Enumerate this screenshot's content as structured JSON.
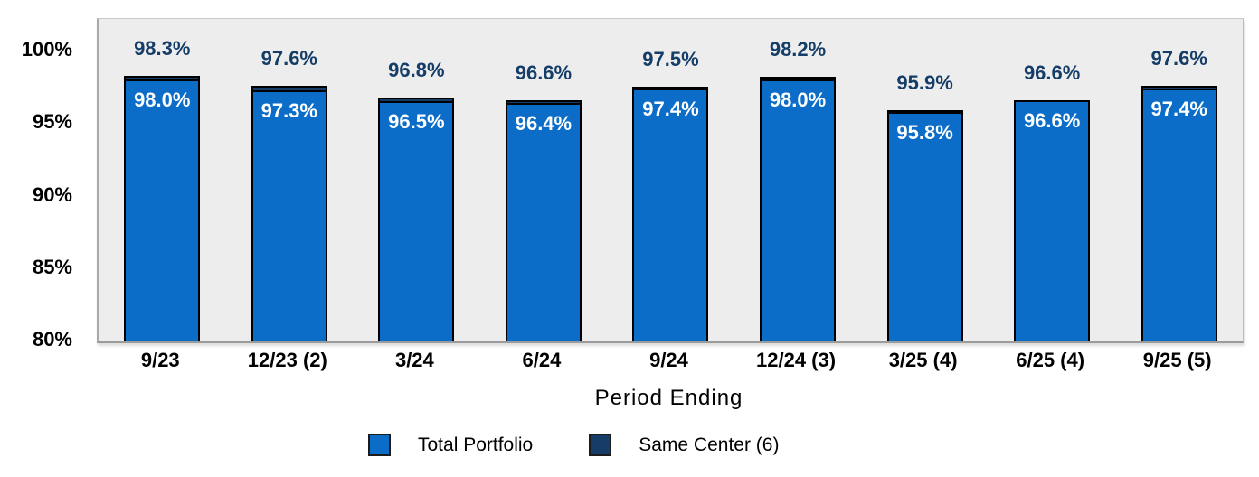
{
  "chart_data": {
    "type": "bar",
    "title": "",
    "xlabel": "Period Ending",
    "ylabel": "",
    "ylim": [
      80,
      102.2
    ],
    "grid": false,
    "legend_position": "bottom",
    "categories": [
      "9/23",
      "12/23 (2)",
      "3/24",
      "6/24",
      "9/24",
      "12/24 (3)",
      "3/25 (4)",
      "6/25 (4)",
      "9/25 (5)"
    ],
    "series": [
      {
        "name": "Total Portfolio",
        "color": "#0b6dc7",
        "values": [
          98.0,
          97.3,
          96.5,
          96.4,
          97.4,
          98.0,
          95.8,
          96.6,
          97.4
        ],
        "labels": [
          "98.0%",
          "97.3%",
          "96.5%",
          "96.4%",
          "97.4%",
          "98.0%",
          "95.8%",
          "96.6%",
          "97.4%"
        ],
        "label_placement": "inside-top",
        "label_color": "#ffffff"
      },
      {
        "name": "Same Center (6)",
        "color": "#163d67",
        "values": [
          98.3,
          97.6,
          96.8,
          96.6,
          97.5,
          98.2,
          95.9,
          96.6,
          97.6
        ],
        "labels": [
          "98.3%",
          "97.6%",
          "96.8%",
          "96.6%",
          "97.5%",
          "98.2%",
          "95.9%",
          "96.6%",
          "97.6%"
        ],
        "label_placement": "above",
        "label_color": "#143d68"
      }
    ],
    "yticks": [
      {
        "value": 100,
        "label": "100%"
      },
      {
        "value": 95,
        "label": "95%"
      },
      {
        "value": 90,
        "label": "90%"
      },
      {
        "value": 85,
        "label": "85%"
      },
      {
        "value": 80,
        "label": "80%"
      }
    ],
    "plot_background": "#ededed",
    "bar_outline_color": "#000000"
  }
}
